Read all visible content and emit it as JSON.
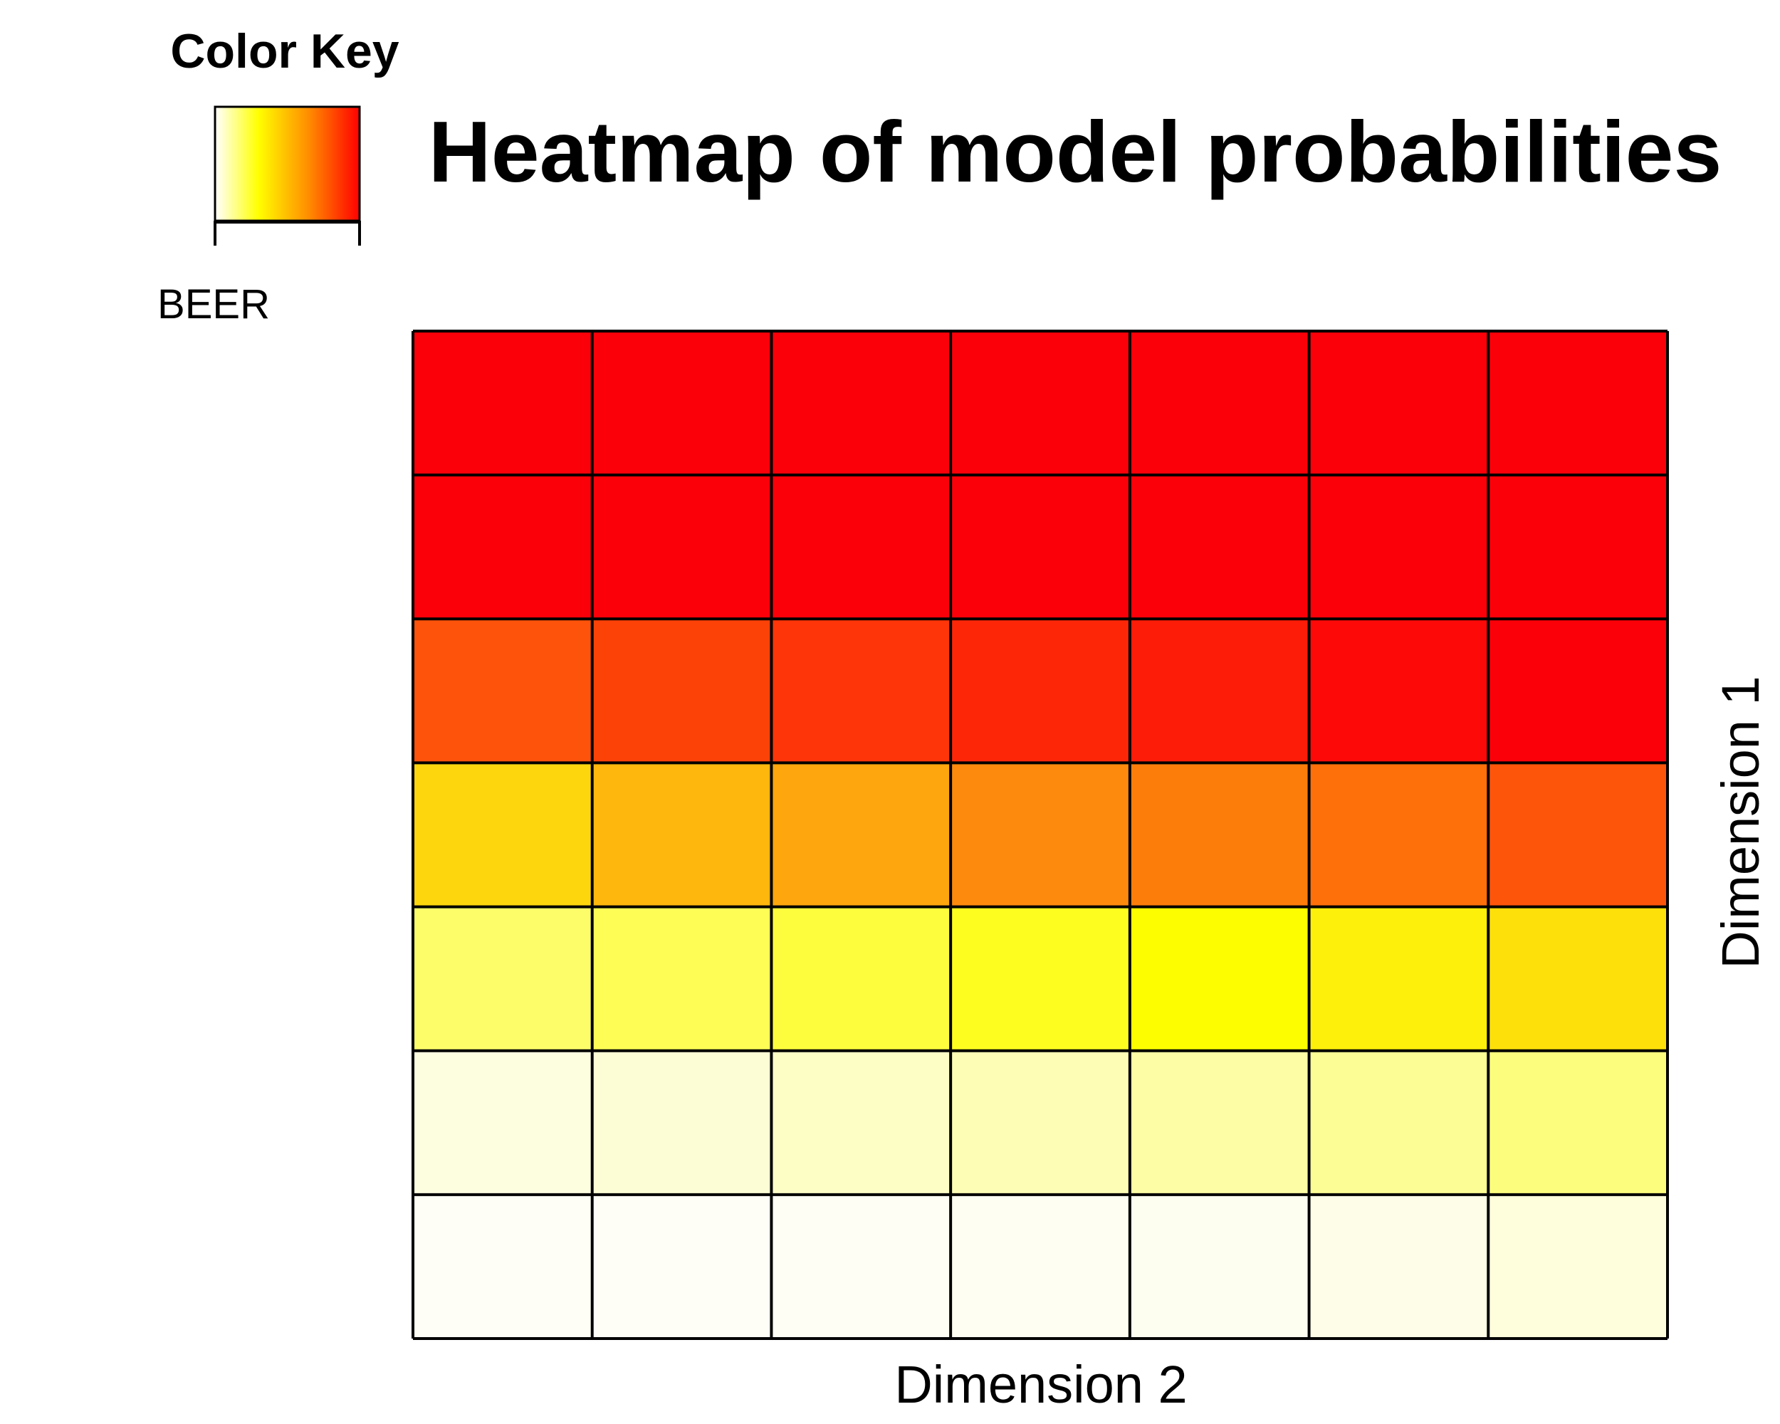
{
  "chart_data": {
    "type": "heatmap",
    "title": "Heatmap of model probabilities",
    "xlabel": "Dimension 2",
    "ylabel": "Dimension 1",
    "color_key": {
      "title": "Color Key",
      "label": "BEER",
      "gradient": [
        "#ffffff",
        "#ffff00",
        "#ff8c00",
        "#ff0000"
      ]
    },
    "rows": 7,
    "cols": 7,
    "cell_colors": [
      [
        "#fb0008",
        "#fb0008",
        "#fb0008",
        "#fb0008",
        "#fb0008",
        "#fb0008",
        "#fb0008"
      ],
      [
        "#fb0008",
        "#fb0008",
        "#fb0008",
        "#fb0008",
        "#fb0008",
        "#fb0008",
        "#fb0008"
      ],
      [
        "#fd530a",
        "#fd4208",
        "#fd3508",
        "#fd2708",
        "#fd1c08",
        "#fd0a08",
        "#fb0008"
      ],
      [
        "#fdd60d",
        "#fdb70d",
        "#fda60d",
        "#fd8a0d",
        "#fd7d0b",
        "#fd700a",
        "#fd550a"
      ],
      [
        "#fdfd6a",
        "#fdfd55",
        "#fdfd3d",
        "#fdfd20",
        "#fdfd00",
        "#fdf00a",
        "#fde00a"
      ],
      [
        "#fdfde0",
        "#fdfdd5",
        "#fdfdc6",
        "#fdfdb5",
        "#fdfda5",
        "#fdfd95",
        "#fdfd7d"
      ],
      [
        "#fefef6",
        "#fefef6",
        "#fefef4",
        "#fefef2",
        "#fefef0",
        "#fefee8",
        "#fefedc"
      ]
    ],
    "grid": true
  }
}
